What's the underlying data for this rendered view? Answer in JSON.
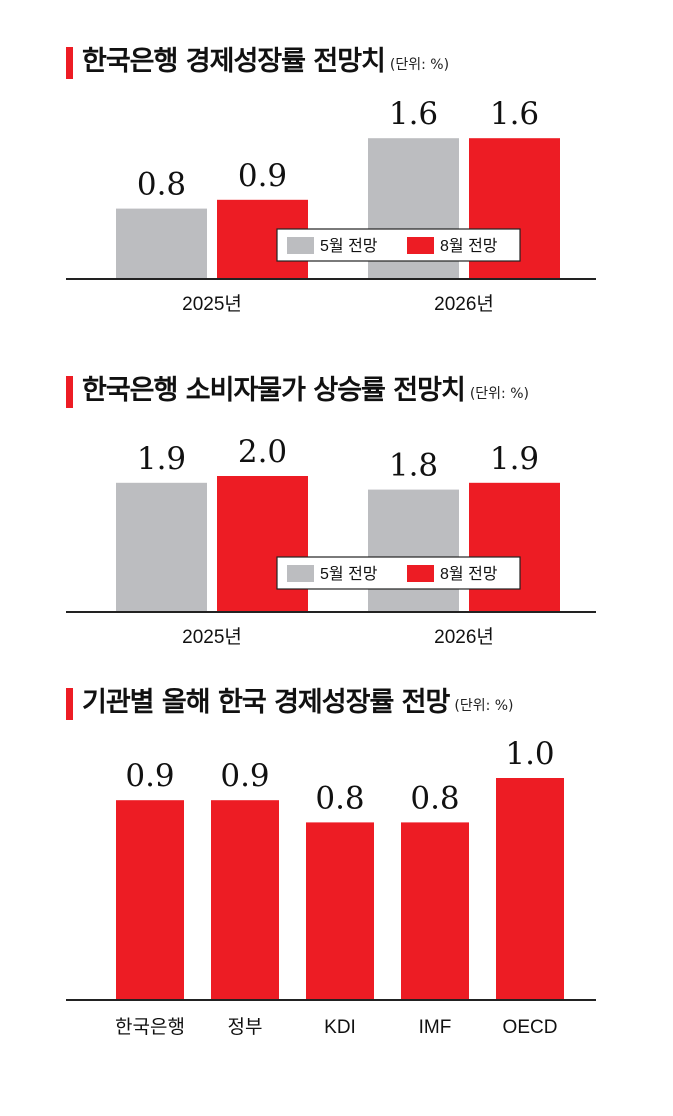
{
  "colors": {
    "may": "#bcbdc0",
    "aug": "#ed1c24",
    "accent": "#ed1c24",
    "axis": "#222222"
  },
  "chart_data": [
    {
      "type": "bar",
      "title": "한국은행 경제성장률 전망치",
      "unit": "(단위: %)",
      "categories": [
        "2025년",
        "2026년"
      ],
      "series": [
        {
          "name": "5월 전망",
          "values": [
            0.8,
            1.6
          ],
          "labels": [
            "0.8",
            "1.6"
          ],
          "color": "#bcbdc0"
        },
        {
          "name": "8월 전망",
          "values": [
            0.9,
            1.6
          ],
          "labels": [
            "0.9",
            "1.6"
          ],
          "color": "#ed1c24"
        }
      ],
      "legend": "center",
      "grid": false
    },
    {
      "type": "bar",
      "title": "한국은행 소비자물가 상승률 전망치",
      "unit": "(단위: %)",
      "categories": [
        "2025년",
        "2026년"
      ],
      "series": [
        {
          "name": "5월 전망",
          "values": [
            1.9,
            1.8
          ],
          "labels": [
            "1.9",
            "1.8"
          ],
          "color": "#bcbdc0"
        },
        {
          "name": "8월 전망",
          "values": [
            2.0,
            1.9
          ],
          "labels": [
            "2.0",
            "1.9"
          ],
          "color": "#ed1c24"
        }
      ],
      "legend": "center",
      "grid": false
    },
    {
      "type": "bar",
      "title": "기관별 올해 한국 경제성장률 전망",
      "unit": "(단위: %)",
      "categories": [
        "한국은행",
        "정부",
        "KDI",
        "IMF",
        "OECD"
      ],
      "values": [
        0.9,
        0.9,
        0.8,
        0.8,
        1.0
      ],
      "labels": [
        "0.9",
        "0.9",
        "0.8",
        "0.8",
        "1.0"
      ],
      "color": "#ed1c24",
      "grid": false
    }
  ]
}
